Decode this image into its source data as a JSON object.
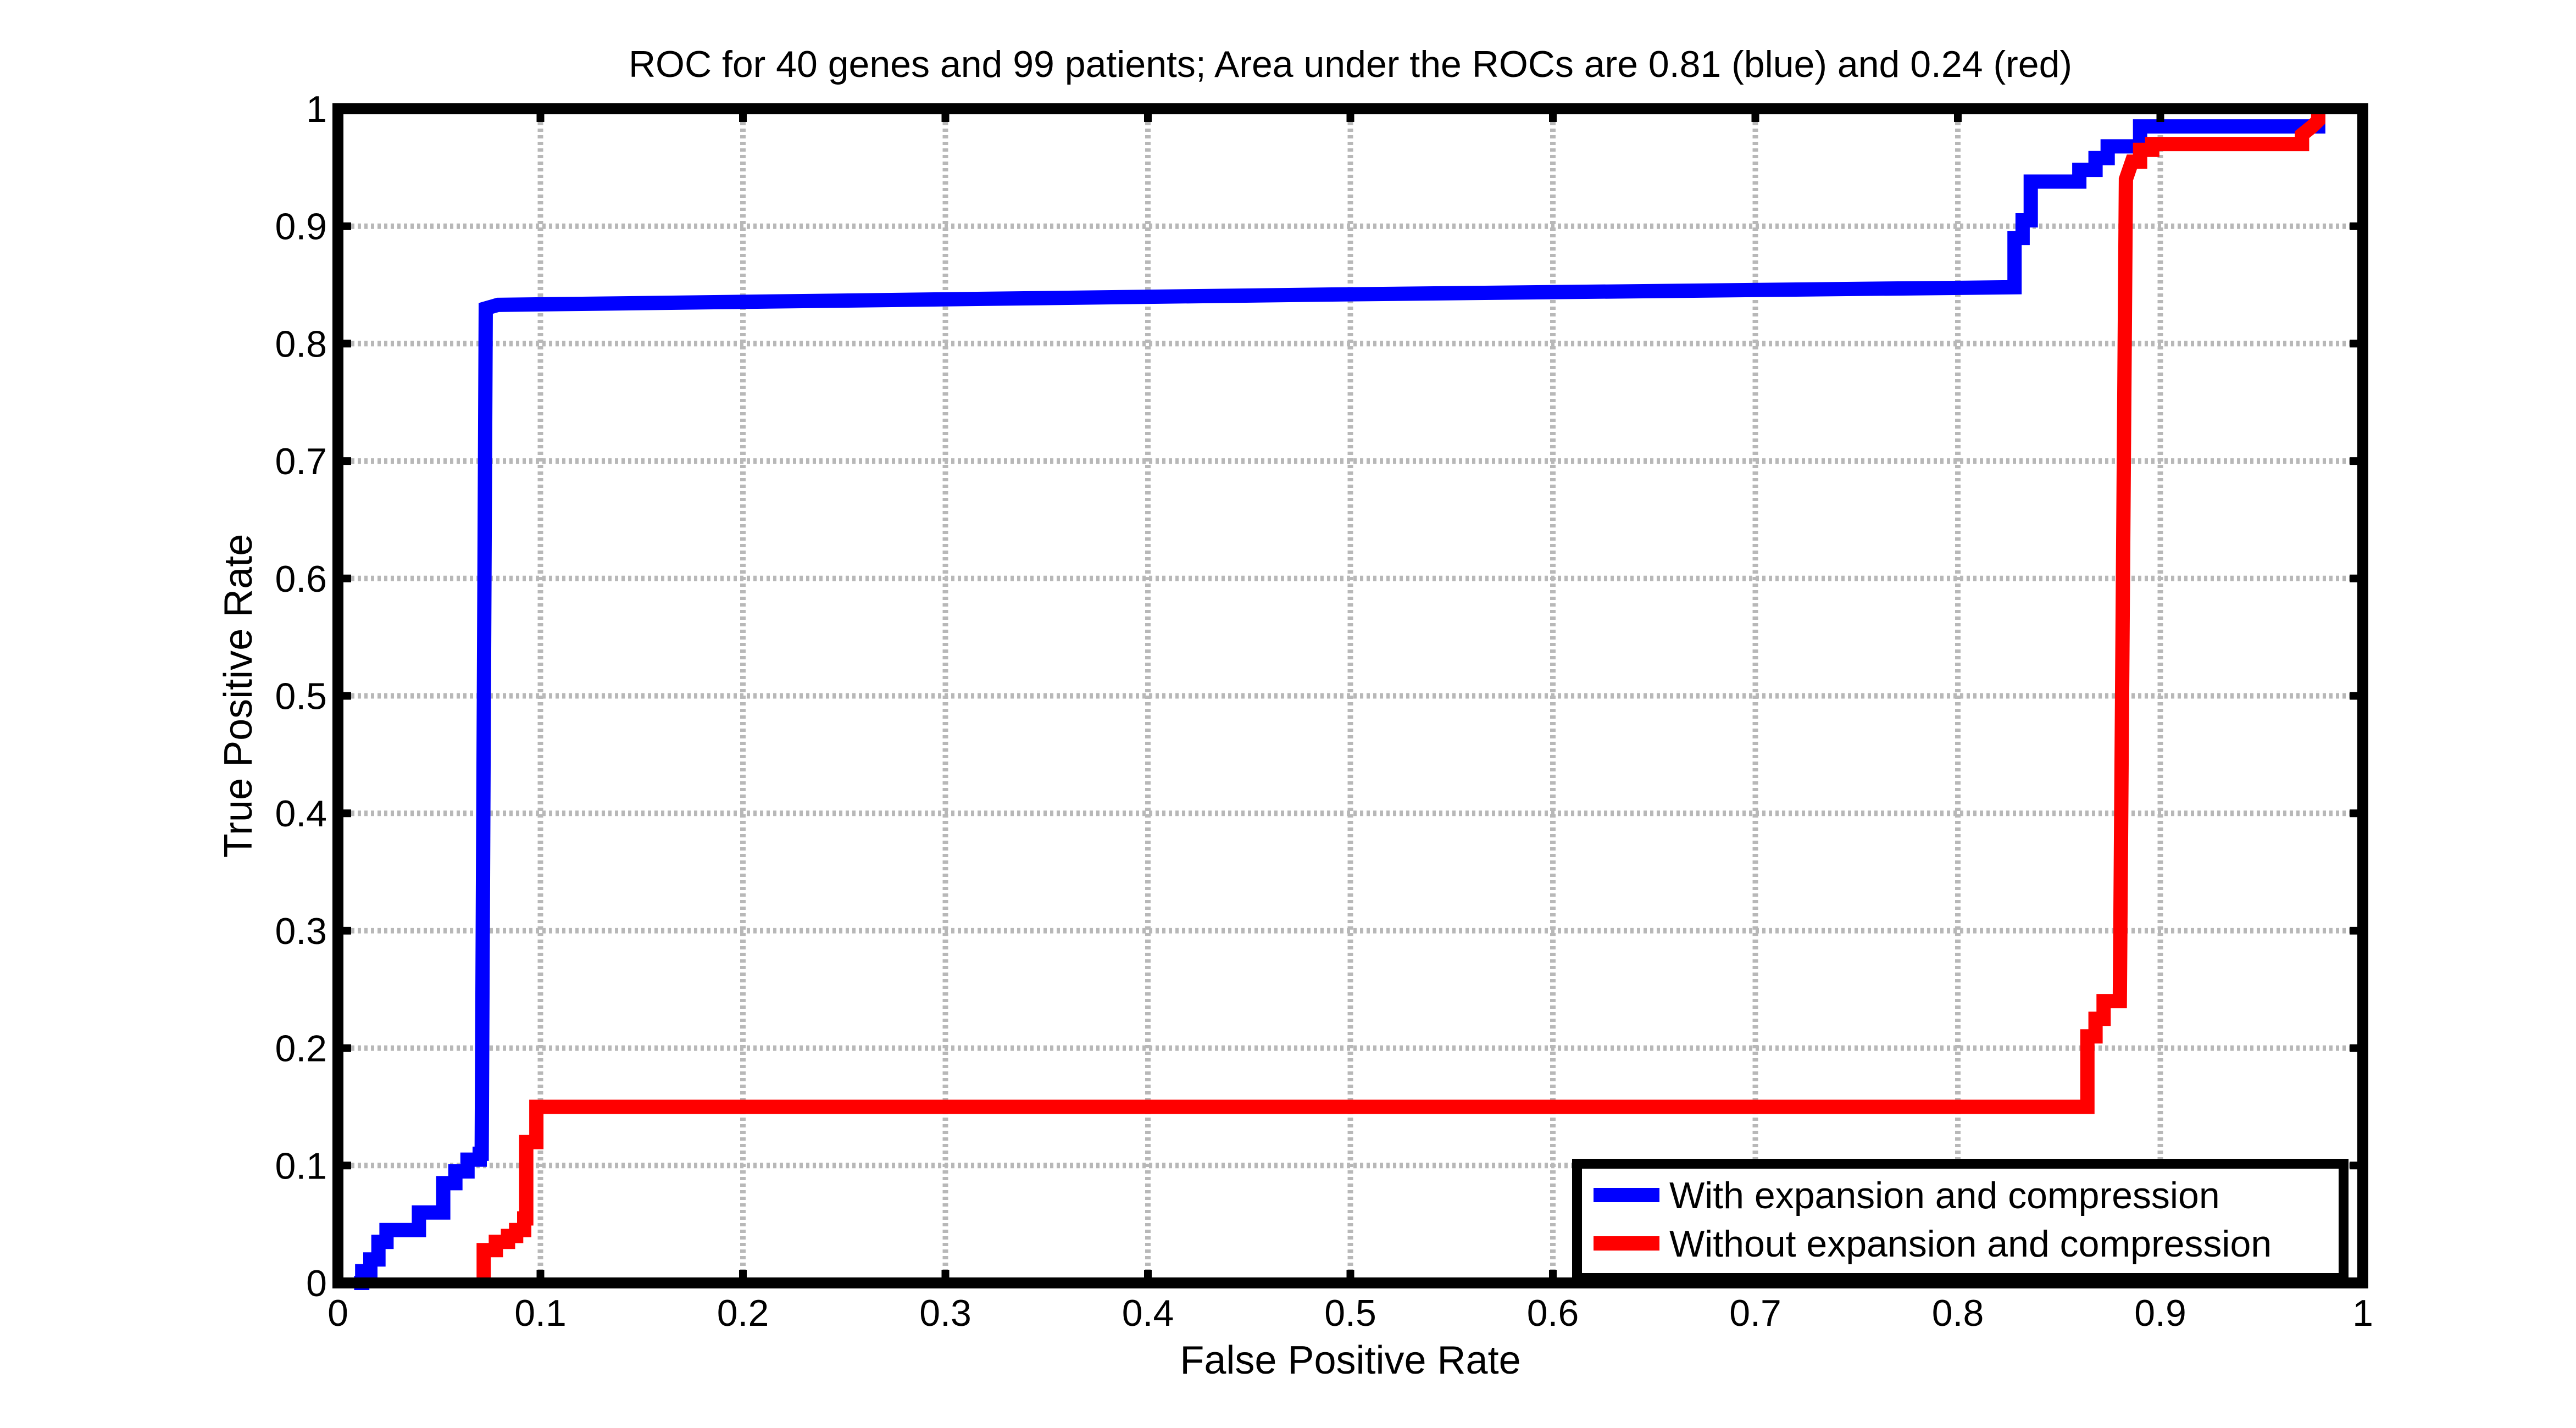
{
  "chart_data": {
    "type": "line",
    "title": "ROC for 40 genes and 99 patients; Area under the ROCs are  0.81 (blue) and 0.24 (red)",
    "xlabel": "False Positive Rate",
    "ylabel": "True Positive Rate",
    "xlim": [
      0,
      1
    ],
    "ylim": [
      0,
      1
    ],
    "xticks": [
      "0",
      "0.1",
      "0.2",
      "0.3",
      "0.4",
      "0.5",
      "0.6",
      "0.7",
      "0.8",
      "0.9",
      "1"
    ],
    "yticks": [
      "0",
      "0.1",
      "0.2",
      "0.3",
      "0.4",
      "0.5",
      "0.6",
      "0.7",
      "0.8",
      "0.9",
      "1"
    ],
    "grid": true,
    "legend_position": "bottom-right",
    "series": [
      {
        "name": "With expansion and compression",
        "color": "#0000ff",
        "points": [
          [
            0.008,
            0.0
          ],
          [
            0.012,
            0.0
          ],
          [
            0.012,
            0.01
          ],
          [
            0.016,
            0.01
          ],
          [
            0.016,
            0.02
          ],
          [
            0.02,
            0.02
          ],
          [
            0.02,
            0.035
          ],
          [
            0.024,
            0.035
          ],
          [
            0.024,
            0.045
          ],
          [
            0.04,
            0.045
          ],
          [
            0.04,
            0.06
          ],
          [
            0.052,
            0.06
          ],
          [
            0.052,
            0.085
          ],
          [
            0.058,
            0.085
          ],
          [
            0.058,
            0.095
          ],
          [
            0.064,
            0.095
          ],
          [
            0.064,
            0.105
          ],
          [
            0.07,
            0.105
          ],
          [
            0.07,
            0.11
          ],
          [
            0.071,
            0.11
          ],
          [
            0.073,
            0.83
          ],
          [
            0.079,
            0.833
          ],
          [
            0.5,
            0.842
          ],
          [
            0.828,
            0.848
          ],
          [
            0.828,
            0.89
          ],
          [
            0.832,
            0.89
          ],
          [
            0.832,
            0.905
          ],
          [
            0.836,
            0.905
          ],
          [
            0.836,
            0.938
          ],
          [
            0.86,
            0.938
          ],
          [
            0.86,
            0.948
          ],
          [
            0.868,
            0.948
          ],
          [
            0.868,
            0.958
          ],
          [
            0.874,
            0.958
          ],
          [
            0.874,
            0.968
          ],
          [
            0.89,
            0.968
          ],
          [
            0.89,
            0.985
          ],
          [
            0.978,
            0.985
          ],
          [
            0.978,
            1.0
          ]
        ]
      },
      {
        "name": "Without expansion and compression",
        "color": "#ff0000",
        "points": [
          [
            0.072,
            0.0
          ],
          [
            0.072,
            0.028
          ],
          [
            0.078,
            0.028
          ],
          [
            0.078,
            0.035
          ],
          [
            0.084,
            0.035
          ],
          [
            0.084,
            0.04
          ],
          [
            0.088,
            0.04
          ],
          [
            0.088,
            0.045
          ],
          [
            0.092,
            0.045
          ],
          [
            0.092,
            0.055
          ],
          [
            0.093,
            0.055
          ],
          [
            0.093,
            0.12
          ],
          [
            0.098,
            0.12
          ],
          [
            0.098,
            0.15
          ],
          [
            0.864,
            0.15
          ],
          [
            0.864,
            0.21
          ],
          [
            0.868,
            0.21
          ],
          [
            0.868,
            0.225
          ],
          [
            0.872,
            0.225
          ],
          [
            0.872,
            0.24
          ],
          [
            0.88,
            0.24
          ],
          [
            0.883,
            0.94
          ],
          [
            0.886,
            0.955
          ],
          [
            0.89,
            0.955
          ],
          [
            0.89,
            0.965
          ],
          [
            0.896,
            0.965
          ],
          [
            0.896,
            0.97
          ],
          [
            0.97,
            0.97
          ],
          [
            0.97,
            0.978
          ],
          [
            0.975,
            0.985
          ],
          [
            0.978,
            0.99
          ],
          [
            0.978,
            1.0
          ]
        ]
      }
    ]
  }
}
